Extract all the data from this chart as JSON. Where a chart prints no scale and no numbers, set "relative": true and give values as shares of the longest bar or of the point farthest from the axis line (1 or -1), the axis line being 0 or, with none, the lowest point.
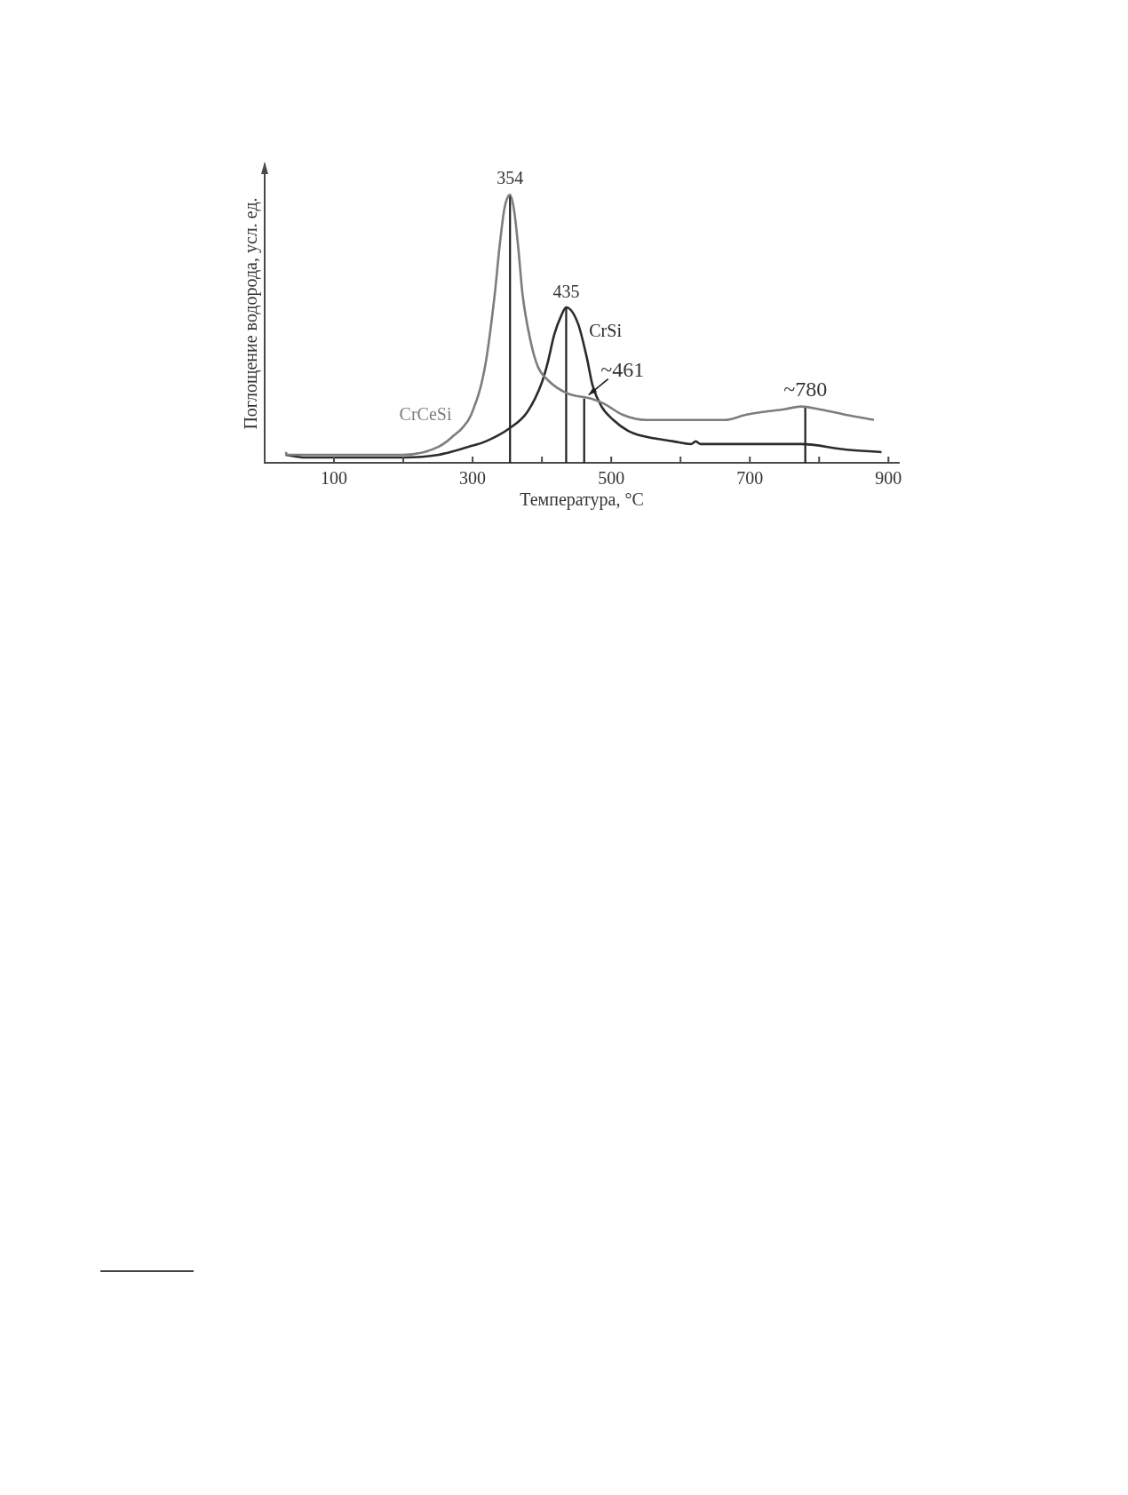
{
  "chart_data": {
    "type": "line",
    "xlabel": "Температура, °C",
    "ylabel": "Поглощение водорода, усл. ед.",
    "relative": true,
    "line_style": "solid",
    "xlim": [
      0,
      915
    ],
    "xticks": [
      100,
      {
        "value": 200,
        "label": null
      },
      300,
      {
        "value": 400,
        "label": null
      },
      500,
      {
        "value": 600,
        "label": null
      },
      700,
      {
        "value": 800,
        "label": null
      },
      900
    ],
    "series": [
      {
        "name": "CrCeSi",
        "color": "#7d7d7d",
        "x": [
          30,
          33,
          58,
          100,
          200,
          230,
          251,
          263,
          272,
          285,
          298,
          318,
          332,
          339,
          346,
          354,
          360,
          366,
          372,
          384,
          394,
          408,
          436,
          470,
          490,
          516,
          550,
          601,
          664,
          695,
          719,
          750,
          774,
          800,
          837,
          879
        ],
        "values": [
          0.04,
          0.03,
          0.03,
          0.03,
          0.03,
          0.04,
          0.06,
          0.08,
          0.1,
          0.13,
          0.18,
          0.36,
          0.63,
          0.81,
          0.95,
          1,
          0.94,
          0.8,
          0.63,
          0.45,
          0.36,
          0.31,
          0.26,
          0.24,
          0.22,
          0.18,
          0.16,
          0.16,
          0.16,
          0.18,
          0.19,
          0.2,
          0.21,
          0.2,
          0.18,
          0.16
        ]
      },
      {
        "name": "CrSi",
        "color": "#2b2b2b",
        "x": [
          30,
          58,
          100,
          200,
          251,
          294,
          319,
          354,
          379,
          400,
          408,
          418,
          428,
          435,
          452,
          465,
          473,
          486,
          503,
          524,
          545,
          590,
          615,
          622,
          629,
          646,
          721,
          774,
          837,
          890
        ],
        "values": [
          0.03,
          0.02,
          0.02,
          0.02,
          0.03,
          0.06,
          0.08,
          0.13,
          0.19,
          0.3,
          0.37,
          0.48,
          0.55,
          0.58,
          0.52,
          0.39,
          0.29,
          0.21,
          0.16,
          0.12,
          0.1,
          0.08,
          0.07,
          0.08,
          0.07,
          0.07,
          0.07,
          0.07,
          0.05,
          0.04
        ]
      },
      {
        "color": "#1e1e1e",
        "x": [
          354,
          354
        ],
        "values": [
          0,
          1
        ]
      },
      {
        "color": "#1e1e1e",
        "x": [
          435,
          435
        ],
        "values": [
          0,
          0.58
        ]
      },
      {
        "color": "#1e1e1e",
        "x": [
          461,
          461
        ],
        "values": [
          0,
          0.24
        ]
      },
      {
        "color": "#1e1e1e",
        "x": [
          780,
          780
        ],
        "values": [
          0,
          0.21
        ]
      }
    ],
    "annotations": [
      {
        "text": "354",
        "x": 354,
        "y": 1
      },
      {
        "text": "435",
        "x": 435,
        "y": 0.58
      },
      {
        "text": "~461",
        "x": 461,
        "y": 0.24
      },
      {
        "text": "~780",
        "x": 780,
        "y": 0.21
      }
    ]
  }
}
